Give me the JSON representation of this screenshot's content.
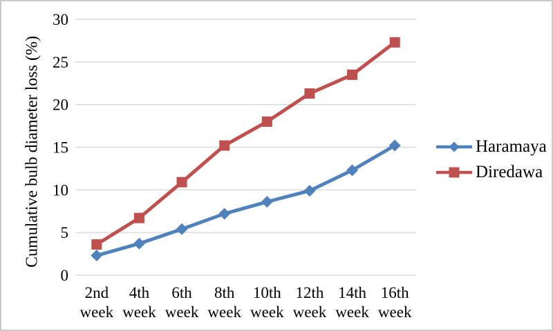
{
  "chart_data": {
    "type": "line",
    "title": "",
    "xlabel": "",
    "ylabel": "Cumulative bulb diameter loss (%)",
    "ylim": [
      0,
      30
    ],
    "yticks": [
      0,
      5,
      10,
      15,
      20,
      25,
      30
    ],
    "grid": "horizontal",
    "legend_position": "right",
    "categories": [
      "2nd week",
      "4th week",
      "6th week",
      "8th week",
      "10th week",
      "12th week",
      "14th week",
      "16th week"
    ],
    "series": [
      {
        "name": "Haramaya",
        "marker": "diamond",
        "color": "#4F81BD",
        "values": [
          2.3,
          3.7,
          5.4,
          7.2,
          8.6,
          9.9,
          12.3,
          15.2
        ]
      },
      {
        "name": "Diredawa",
        "marker": "square",
        "color": "#C0504D",
        "values": [
          3.6,
          6.7,
          10.9,
          15.2,
          18.0,
          21.3,
          23.5,
          27.3
        ]
      }
    ]
  },
  "colors": {
    "gridline": "#D9D9D9",
    "figure_border": "#C9C9C9",
    "text": "#000000"
  }
}
